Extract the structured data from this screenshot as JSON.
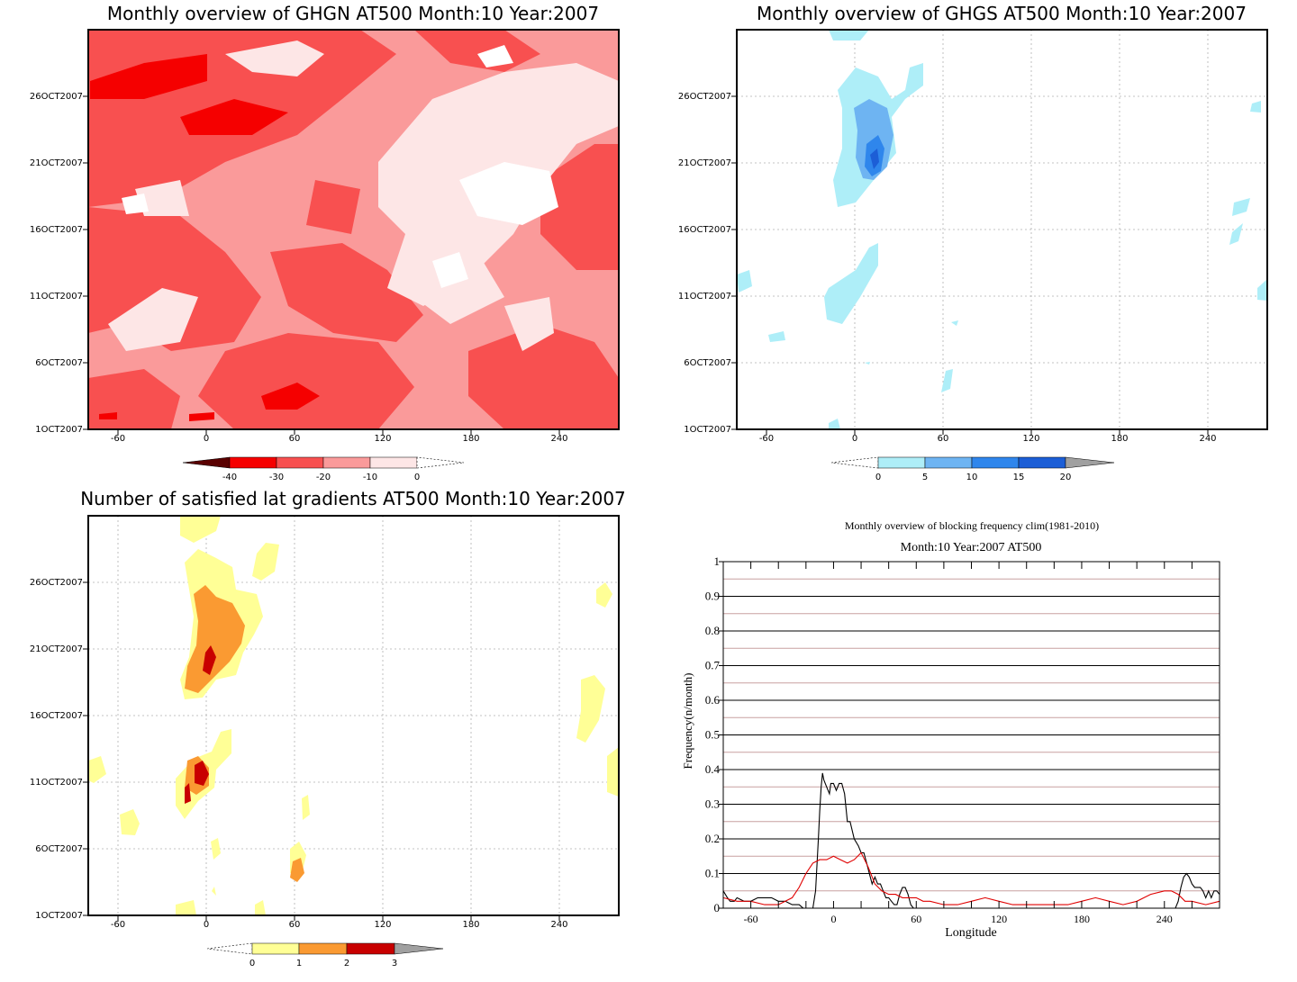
{
  "panels": {
    "ghgn": {
      "title": "Monthly overview of GHGN AT500 Month:10 Year:2007",
      "y_ticks": [
        "26OCT2007",
        "21OCT2007",
        "16OCT2007",
        "11OCT2007",
        "6OCT2007",
        "1OCT2007"
      ],
      "x_ticks": [
        "-60",
        "0",
        "60",
        "120",
        "180",
        "240"
      ],
      "colorbar": [
        "-40",
        "-30",
        "-20",
        "-10",
        "0"
      ],
      "colors": [
        "#5a0000",
        "#f50000",
        "#f85050",
        "#fa9a9a",
        "#fde6e6",
        "#ffffff"
      ]
    },
    "ghgs": {
      "title": "Monthly overview of GHGS AT500 Month:10 Year:2007",
      "y_ticks": [
        "26OCT2007",
        "21OCT2007",
        "16OCT2007",
        "11OCT2007",
        "6OCT2007",
        "1OCT2007"
      ],
      "x_ticks": [
        "-60",
        "0",
        "60",
        "120",
        "180",
        "240"
      ],
      "colorbar": [
        "0",
        "5",
        "10",
        "15",
        "20"
      ],
      "colors": [
        "#ffffff",
        "#aeeef8",
        "#6eb4f2",
        "#2f86ec",
        "#1c5ed6",
        "#a0a0a0"
      ]
    },
    "grad": {
      "title": "Number of satisfied lat gradients AT500 Month:10 Year:2007",
      "y_ticks": [
        "26OCT2007",
        "21OCT2007",
        "16OCT2007",
        "11OCT2007",
        "6OCT2007",
        "1OCT2007"
      ],
      "x_ticks": [
        "-60",
        "0",
        "60",
        "120",
        "180",
        "240"
      ],
      "colorbar": [
        "0",
        "1",
        "2",
        "3"
      ],
      "colors": [
        "#ffffff",
        "#ffff96",
        "#fa9a32",
        "#c80000",
        "#a0a0a0"
      ]
    },
    "freq": {
      "title": "Monthly overview of blocking frequency clim(1981-2010)",
      "subtitle": "Month:10 Year:2007  AT500"
    }
  },
  "chart_data": [
    {
      "type": "heatmap",
      "title": "Monthly overview of GHGN AT500 Month:10 Year:2007",
      "x_range": [
        -75,
        285
      ],
      "y_range": [
        "1OCT2007",
        "31OCT2007"
      ],
      "colorbar_levels": [
        -40,
        -30,
        -20,
        -10,
        0
      ]
    },
    {
      "type": "heatmap",
      "title": "Monthly overview of GHGS AT500 Month:10 Year:2007",
      "x_range": [
        -75,
        285
      ],
      "y_range": [
        "1OCT2007",
        "31OCT2007"
      ],
      "colorbar_levels": [
        0,
        5,
        10,
        15,
        20
      ]
    },
    {
      "type": "heatmap",
      "title": "Number of satisfied lat gradients AT500 Month:10 Year:2007",
      "x_range": [
        -75,
        285
      ],
      "y_range": [
        "1OCT2007",
        "31OCT2007"
      ],
      "colorbar_levels": [
        0,
        1,
        2,
        3
      ]
    },
    {
      "type": "line",
      "title": "Monthly overview of blocking frequency clim(1981-2010)",
      "subtitle": "Month:10 Year:2007  AT500",
      "xlabel": "Longitude",
      "ylabel": "Frequency(n/month)",
      "xlim": [
        -80,
        280
      ],
      "ylim": [
        0,
        1
      ],
      "x_ticks": [
        -60,
        0,
        60,
        120,
        180,
        240
      ],
      "y_ticks": [
        0,
        0.1,
        0.2,
        0.3,
        0.4,
        0.5,
        0.6,
        0.7,
        0.8,
        0.9,
        1
      ],
      "y_tick_labels": [
        "0",
        "0.1",
        "0.2",
        "0.3",
        "0.4",
        "0.5",
        "0.6",
        "0.7",
        "0.8",
        "0.9",
        "1"
      ],
      "x_tick_labels": [
        "-60",
        "0",
        "60",
        "120",
        "180",
        "240"
      ],
      "series": [
        {
          "color": "#000000",
          "x": [
            -80,
            -77,
            -75,
            -72,
            -70,
            -65,
            -60,
            -55,
            -50,
            -45,
            -40,
            -35,
            -30,
            -25,
            -22,
            -20,
            -18,
            -15,
            -13,
            -11,
            -10,
            -9,
            -8,
            -7,
            -5,
            -3,
            -2,
            0,
            2,
            4,
            6,
            8,
            10,
            12,
            15,
            18,
            20,
            22,
            24,
            26,
            28,
            30,
            32,
            34,
            36,
            38,
            40,
            42,
            44,
            46,
            48,
            50,
            52,
            54,
            56,
            58,
            60,
            62,
            64,
            66,
            68,
            70,
            75,
            80,
            90,
            100,
            110,
            120,
            130,
            140,
            150,
            160,
            170,
            180,
            190,
            200,
            210,
            220,
            230,
            240,
            248,
            250,
            252,
            254,
            256,
            258,
            260,
            262,
            264,
            266,
            268,
            270,
            272,
            274,
            276,
            278,
            280
          ],
          "y": [
            0.05,
            0.03,
            0.02,
            0.02,
            0.03,
            0.02,
            0.02,
            0.03,
            0.03,
            0.03,
            0.02,
            0.02,
            0.01,
            0.01,
            0.0,
            0.0,
            0.0,
            0.0,
            0.05,
            0.2,
            0.28,
            0.35,
            0.39,
            0.37,
            0.35,
            0.33,
            0.36,
            0.36,
            0.34,
            0.36,
            0.36,
            0.33,
            0.25,
            0.25,
            0.2,
            0.18,
            0.16,
            0.16,
            0.13,
            0.1,
            0.07,
            0.09,
            0.07,
            0.07,
            0.05,
            0.03,
            0.03,
            0.02,
            0.01,
            0.01,
            0.04,
            0.06,
            0.06,
            0.04,
            0.01,
            0.0,
            0.0,
            0.0,
            0.0,
            0.0,
            0.0,
            0.0,
            0.0,
            0.0,
            0.0,
            0.0,
            0.0,
            0.0,
            0.0,
            0.0,
            0.0,
            0.0,
            0.0,
            0.0,
            0.0,
            0.0,
            0.0,
            0.0,
            0.0,
            0.0,
            0.0,
            0.02,
            0.06,
            0.09,
            0.1,
            0.09,
            0.07,
            0.06,
            0.06,
            0.06,
            0.05,
            0.03,
            0.05,
            0.03,
            0.05,
            0.05,
            0.04
          ]
        },
        {
          "color": "#e00000",
          "x": [
            -80,
            -70,
            -60,
            -50,
            -40,
            -30,
            -25,
            -20,
            -15,
            -10,
            -5,
            0,
            5,
            10,
            15,
            20,
            25,
            30,
            35,
            40,
            45,
            50,
            55,
            60,
            65,
            70,
            80,
            90,
            100,
            110,
            120,
            130,
            140,
            150,
            160,
            170,
            180,
            190,
            200,
            210,
            220,
            230,
            240,
            245,
            250,
            255,
            260,
            270,
            280
          ],
          "y": [
            0.03,
            0.02,
            0.02,
            0.01,
            0.01,
            0.03,
            0.06,
            0.1,
            0.13,
            0.14,
            0.14,
            0.15,
            0.14,
            0.13,
            0.14,
            0.16,
            0.12,
            0.07,
            0.05,
            0.04,
            0.04,
            0.03,
            0.03,
            0.03,
            0.02,
            0.02,
            0.01,
            0.01,
            0.02,
            0.03,
            0.02,
            0.01,
            0.01,
            0.01,
            0.01,
            0.01,
            0.02,
            0.03,
            0.02,
            0.01,
            0.02,
            0.04,
            0.05,
            0.05,
            0.04,
            0.02,
            0.02,
            0.01,
            0.02
          ]
        }
      ]
    }
  ]
}
